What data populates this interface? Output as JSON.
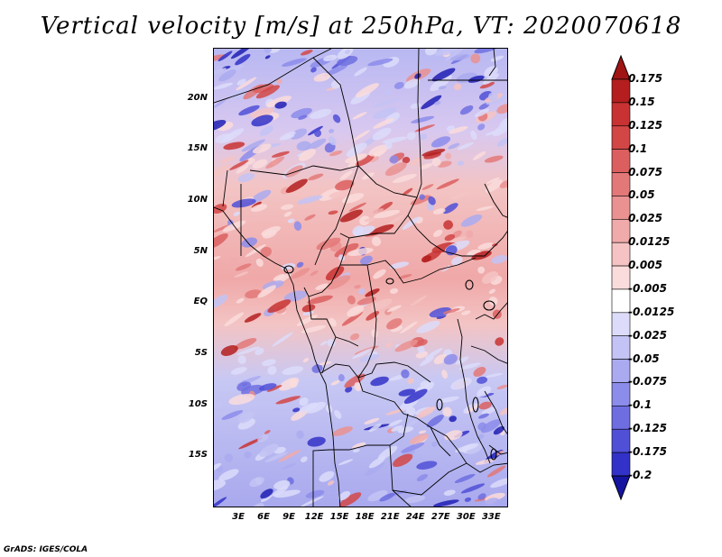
{
  "title": "Vertical velocity [m/s] at 250hPa, VT: 2020070618",
  "footer": "GrADS: IGES/COLA",
  "map": {
    "lat_range": [
      -20,
      25
    ],
    "lon_range": [
      0,
      35
    ],
    "lat_labels": [
      {
        "lat": 20,
        "text": "20N"
      },
      {
        "lat": 15,
        "text": "15N"
      },
      {
        "lat": 10,
        "text": "10N"
      },
      {
        "lat": 5,
        "text": "5N"
      },
      {
        "lat": 0,
        "text": "EQ"
      },
      {
        "lat": -5,
        "text": "5S"
      },
      {
        "lat": -10,
        "text": "10S"
      },
      {
        "lat": -15,
        "text": "15S"
      }
    ],
    "lon_labels": [
      {
        "lon": 3,
        "text": "3E"
      },
      {
        "lon": 6,
        "text": "6E"
      },
      {
        "lon": 9,
        "text": "9E"
      },
      {
        "lon": 12,
        "text": "12E"
      },
      {
        "lon": 15,
        "text": "15E"
      },
      {
        "lon": 18,
        "text": "18E"
      },
      {
        "lon": 21,
        "text": "21E"
      },
      {
        "lon": 24,
        "text": "24E"
      },
      {
        "lon": 27,
        "text": "27E"
      },
      {
        "lon": 30,
        "text": "30E"
      },
      {
        "lon": 33,
        "text": "33E"
      }
    ]
  },
  "colorbar": {
    "levels": [
      {
        "text": "0.175",
        "color": "#b41e1e"
      },
      {
        "text": "0.15",
        "color": "#c83232"
      },
      {
        "text": "0.125",
        "color": "#d24646"
      },
      {
        "text": "0.1",
        "color": "#dc5f5f"
      },
      {
        "text": "0.075",
        "color": "#e37878"
      },
      {
        "text": "0.05",
        "color": "#ea9191"
      },
      {
        "text": "0.025",
        "color": "#f0aaaa"
      },
      {
        "text": "0.0125",
        "color": "#f5c3c3"
      },
      {
        "text": "0.005",
        "color": "#fadcdc"
      },
      {
        "text": "-0.005",
        "color": "#ffffff"
      },
      {
        "text": "-0.0125",
        "color": "#dcdcfa"
      },
      {
        "text": "-0.025",
        "color": "#c3c3f5"
      },
      {
        "text": "-0.05",
        "color": "#aaaaf0"
      },
      {
        "text": "-0.075",
        "color": "#8c8ceb"
      },
      {
        "text": "-0.1",
        "color": "#6e6ee1"
      },
      {
        "text": "-0.125",
        "color": "#5050d7"
      },
      {
        "text": "-0.175",
        "color": "#3232c8"
      },
      {
        "text": "-0.2",
        "color": "#1e1eb4"
      }
    ],
    "top_color": "#a01414",
    "bottom_color": "#1414a0"
  }
}
